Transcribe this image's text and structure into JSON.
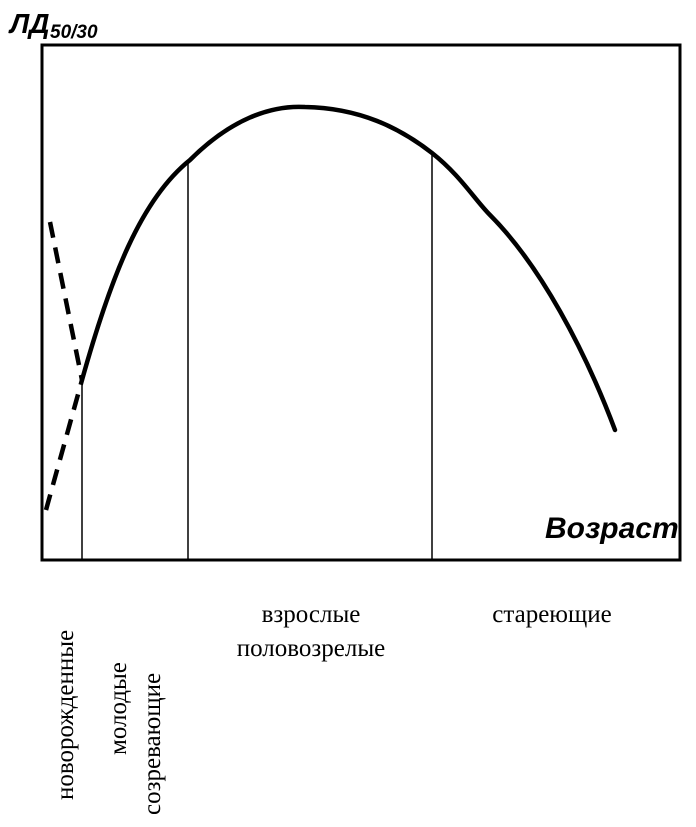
{
  "axes": {
    "y_label": {
      "main": "ЛД",
      "subscript": "50/30"
    },
    "x_label": "Возраст"
  },
  "stages": [
    {
      "lines": [
        "новорожденные"
      ]
    },
    {
      "lines": [
        "молодые",
        "созревающие"
      ]
    },
    {
      "lines": [
        "взрослые",
        "половозрелые"
      ]
    },
    {
      "lines": [
        "стареющие"
      ]
    }
  ]
}
